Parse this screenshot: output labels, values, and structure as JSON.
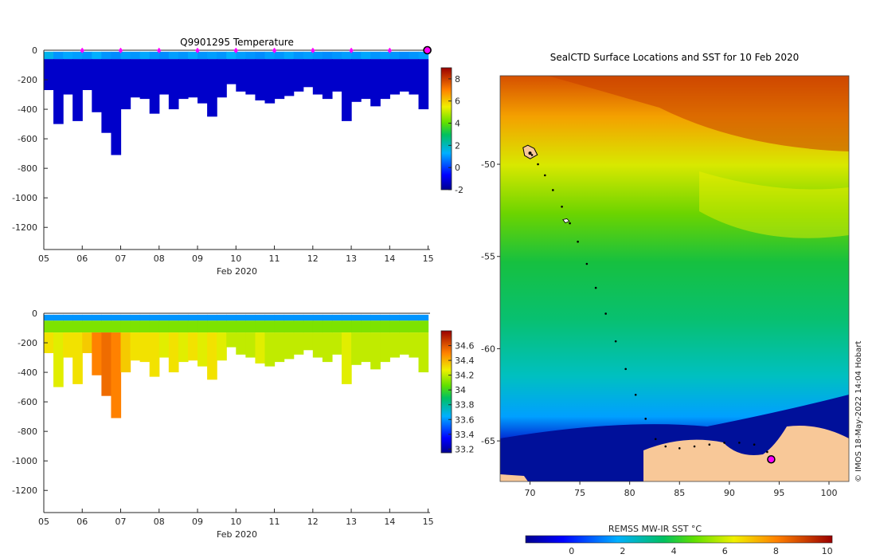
{
  "chart_data": [
    {
      "type": "heatmap",
      "title": "Q9901295  Temperature",
      "xlabel": "Feb 2020",
      "ylabel": "",
      "x_ticks": [
        "05",
        "06",
        "07",
        "08",
        "09",
        "10",
        "11",
        "12",
        "13",
        "14",
        "15"
      ],
      "y_ticks": [
        0,
        -200,
        -400,
        -600,
        -800,
        -1000,
        -1200
      ],
      "xlim": [
        5,
        15.05
      ],
      "ylim": [
        -1350,
        0
      ],
      "colorbar": {
        "label": "",
        "ticks": [
          -2,
          0,
          2,
          4,
          6,
          8
        ],
        "range": [
          -2,
          9
        ]
      },
      "dive_times": [
        5.25,
        5.5,
        5.75,
        6.0,
        6.25,
        6.5,
        6.75,
        7.0,
        7.25,
        7.5,
        7.75,
        8.0,
        8.25,
        8.5,
        8.75,
        9.0,
        9.25,
        9.5,
        9.75,
        10.0,
        10.25,
        10.5,
        10.75,
        11.0,
        11.25,
        11.5,
        11.75,
        12.0,
        12.25,
        12.5,
        12.75,
        13.0,
        13.25,
        13.5,
        13.75,
        14.0,
        14.25,
        14.5,
        14.75,
        15.0
      ],
      "max_depth": [
        -270,
        -500,
        -300,
        -480,
        -270,
        -420,
        -560,
        -710,
        -400,
        -320,
        -330,
        -430,
        -300,
        -400,
        -330,
        -320,
        -360,
        -450,
        -320,
        -230,
        -280,
        -300,
        -340,
        -360,
        -330,
        -310,
        -280,
        -250,
        -300,
        -330,
        -280,
        -480,
        -350,
        -330,
        -380,
        -330,
        -300,
        -280,
        -300,
        -400
      ],
      "surface_temp": [
        1.5,
        1.0,
        1.2,
        1.1,
        1.0,
        1.3,
        1.0,
        0.9,
        1.1,
        1.0,
        1.2,
        1.0,
        0.9,
        1.1,
        1.0,
        1.2,
        1.0,
        1.1,
        1.0,
        1.3,
        1.1,
        1.0,
        0.9,
        1.1,
        1.0,
        1.2,
        1.0,
        1.1,
        1.0,
        0.9,
        1.0,
        1.1,
        1.0,
        1.2,
        1.0,
        1.1,
        1.0,
        0.9,
        1.0,
        1.1
      ],
      "deep_temp": -1.3,
      "markers": [
        6,
        7,
        8,
        9,
        10,
        11,
        12,
        13,
        14
      ],
      "current_position_marker": 14.98
    },
    {
      "type": "heatmap",
      "title": "",
      "xlabel": "Feb 2020",
      "ylabel": "",
      "x_ticks": [
        "05",
        "06",
        "07",
        "08",
        "09",
        "10",
        "11",
        "12",
        "13",
        "14",
        "15"
      ],
      "y_ticks": [
        0,
        -200,
        -400,
        -600,
        -800,
        -1000,
        -1200
      ],
      "xlim": [
        5,
        15.05
      ],
      "ylim": [
        -1350,
        0
      ],
      "colorbar": {
        "label": "",
        "ticks": [
          33.2,
          33.4,
          33.6,
          33.8,
          34,
          34.2,
          34.4,
          34.6
        ],
        "tick_labels": [
          "33.2",
          "33.4",
          "33.6",
          "33.8",
          "34",
          "34.2",
          "34.4",
          "34.6"
        ],
        "range": [
          33.15,
          34.8
        ]
      },
      "surface_salinity": 33.6,
      "mid_salinity": 34.1,
      "deep_salinity_by_dive": [
        34.3,
        34.25,
        34.3,
        34.3,
        34.35,
        34.5,
        34.55,
        34.5,
        34.35,
        34.3,
        34.3,
        34.3,
        34.25,
        34.3,
        34.25,
        34.3,
        34.25,
        34.3,
        34.25,
        34.2,
        34.2,
        34.2,
        34.25,
        34.2,
        34.2,
        34.2,
        34.2,
        34.2,
        34.2,
        34.2,
        34.2,
        34.25,
        34.2,
        34.2,
        34.2,
        34.2,
        34.2,
        34.2,
        34.2,
        34.2
      ]
    },
    {
      "type": "heatmap",
      "title": "SealCTD Surface Locations and SST for 10 Feb 2020",
      "xlabel": "",
      "ylabel": "",
      "x_ticks": [
        70,
        75,
        80,
        85,
        90,
        95,
        100
      ],
      "y_ticks": [
        -50,
        -55,
        -60,
        -65
      ],
      "xlim": [
        67,
        102
      ],
      "ylim": [
        -67.2,
        -45.2
      ],
      "colorbar": {
        "label": "REMSS MW-IR SST °C",
        "ticks": [
          0,
          2,
          4,
          6,
          8,
          10
        ],
        "range": [
          -1.8,
          10.2
        ]
      },
      "track": [
        [
          70.2,
          -49.5
        ],
        [
          70.8,
          -50.0
        ],
        [
          71.5,
          -50.6
        ],
        [
          72.3,
          -51.4
        ],
        [
          73.2,
          -52.3
        ],
        [
          74.0,
          -53.2
        ],
        [
          74.8,
          -54.2
        ],
        [
          75.7,
          -55.4
        ],
        [
          76.6,
          -56.7
        ],
        [
          77.6,
          -58.1
        ],
        [
          78.6,
          -59.6
        ],
        [
          79.6,
          -61.1
        ],
        [
          80.6,
          -62.5
        ],
        [
          81.6,
          -63.8
        ],
        [
          82.6,
          -64.9
        ],
        [
          83.6,
          -65.3
        ],
        [
          85.0,
          -65.4
        ],
        [
          86.5,
          -65.3
        ],
        [
          88.0,
          -65.2
        ],
        [
          89.5,
          -65.1
        ],
        [
          91.0,
          -65.1
        ],
        [
          92.5,
          -65.2
        ],
        [
          93.8,
          -65.6
        ],
        [
          94.3,
          -65.9
        ]
      ],
      "start_location": [
        70.0,
        -49.4
      ],
      "end_location": [
        94.2,
        -66.0
      ],
      "credit": "© IMOS 18-May-2022 14:04 Hobart"
    }
  ]
}
